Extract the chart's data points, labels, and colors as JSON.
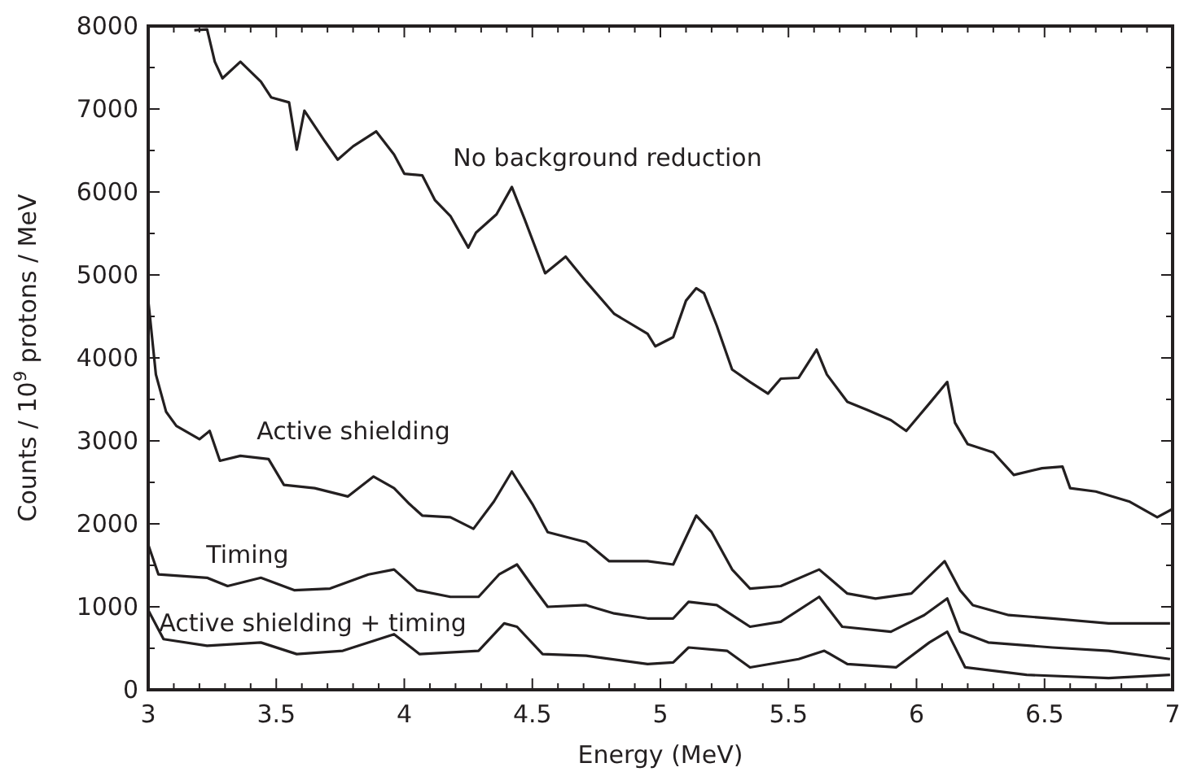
{
  "chart_data": {
    "type": "line",
    "xlabel": "Energy (MeV)",
    "ylabel": "Counts / 10$^{9}$ protons / MeV",
    "xlim": [
      3,
      7
    ],
    "ylim": [
      0,
      8000
    ],
    "xticks": [
      3,
      {
        "value": 3.1,
        "label": null
      },
      {
        "value": 3.2,
        "label": null
      },
      {
        "value": 3.3,
        "label": null
      },
      {
        "value": 3.4,
        "label": null
      },
      3.5,
      {
        "value": 3.6,
        "label": null
      },
      {
        "value": 3.7,
        "label": null
      },
      {
        "value": 3.8,
        "label": null
      },
      {
        "value": 3.9,
        "label": null
      },
      4,
      {
        "value": 4.1,
        "label": null
      },
      {
        "value": 4.2,
        "label": null
      },
      {
        "value": 4.3,
        "label": null
      },
      {
        "value": 4.4,
        "label": null
      },
      4.5,
      {
        "value": 4.6,
        "label": null
      },
      {
        "value": 4.7,
        "label": null
      },
      {
        "value": 4.8,
        "label": null
      },
      {
        "value": 4.9,
        "label": null
      },
      5,
      {
        "value": 5.1,
        "label": null
      },
      {
        "value": 5.2,
        "label": null
      },
      {
        "value": 5.3,
        "label": null
      },
      {
        "value": 5.4,
        "label": null
      },
      5.5,
      {
        "value": 5.6,
        "label": null
      },
      {
        "value": 5.7,
        "label": null
      },
      {
        "value": 5.8,
        "label": null
      },
      {
        "value": 5.9,
        "label": null
      },
      6,
      {
        "value": 6.1,
        "label": null
      },
      {
        "value": 6.2,
        "label": null
      },
      {
        "value": 6.3,
        "label": null
      },
      {
        "value": 6.4,
        "label": null
      },
      6.5,
      {
        "value": 6.6,
        "label": null
      },
      {
        "value": 6.7,
        "label": null
      },
      {
        "value": 6.8,
        "label": null
      },
      {
        "value": 6.9,
        "label": null
      },
      7
    ],
    "yticks": [
      0,
      {
        "value": 500,
        "label": null
      },
      1000,
      {
        "value": 1500,
        "label": null
      },
      2000,
      {
        "value": 2500,
        "label": null
      },
      3000,
      {
        "value": 3500,
        "label": null
      },
      4000,
      {
        "value": 4500,
        "label": null
      },
      5000,
      {
        "value": 5500,
        "label": null
      },
      6000,
      {
        "value": 6500,
        "label": null
      },
      7000,
      {
        "value": 7500,
        "label": null
      },
      8000
    ],
    "grid": false,
    "marker": "none",
    "line_style": "solid",
    "series": [
      {
        "name": "No background reduction",
        "color": "#231f20",
        "x": [
          3.18,
          3.23,
          3.26,
          3.29,
          3.36,
          3.44,
          3.48,
          3.55,
          3.58,
          3.61,
          3.69,
          3.74,
          3.8,
          3.89,
          3.96,
          4.0,
          4.07,
          4.12,
          4.18,
          4.25,
          4.28,
          4.36,
          4.42,
          4.47,
          4.55,
          4.63,
          4.71,
          4.82,
          4.95,
          4.98,
          5.05,
          5.1,
          5.14,
          5.17,
          5.22,
          5.28,
          5.35,
          5.42,
          5.47,
          5.54,
          5.61,
          5.65,
          5.73,
          5.81,
          5.9,
          5.96,
          6.05,
          6.12,
          6.15,
          6.2,
          6.3,
          6.38,
          6.49,
          6.57,
          6.6,
          6.7,
          6.83,
          6.94,
          7.0
        ],
        "values": [
          7950,
          7960,
          7570,
          7370,
          7570,
          7330,
          7140,
          7080,
          6510,
          6980,
          6610,
          6390,
          6550,
          6730,
          6450,
          6220,
          6200,
          5900,
          5710,
          5330,
          5510,
          5730,
          6060,
          5670,
          5020,
          5220,
          4920,
          4530,
          4290,
          4140,
          4250,
          4690,
          4840,
          4780,
          4390,
          3860,
          3710,
          3570,
          3750,
          3760,
          4100,
          3800,
          3470,
          3370,
          3250,
          3120,
          3450,
          3710,
          3220,
          2960,
          2860,
          2590,
          2670,
          2690,
          2430,
          2390,
          2270,
          2080,
          2180
        ]
      },
      {
        "name": "Active shielding",
        "color": "#231f20",
        "x": [
          3.0,
          3.03,
          3.07,
          3.11,
          3.2,
          3.24,
          3.28,
          3.36,
          3.47,
          3.53,
          3.65,
          3.78,
          3.88,
          3.96,
          4.02,
          4.07,
          4.18,
          4.27,
          4.35,
          4.42,
          4.5,
          4.56,
          4.71,
          4.8,
          4.95,
          5.05,
          5.14,
          5.2,
          5.28,
          5.35,
          5.47,
          5.62,
          5.73,
          5.84,
          5.98,
          6.11,
          6.17,
          6.22,
          6.36,
          6.53,
          6.75,
          6.99
        ],
        "values": [
          4700,
          3800,
          3350,
          3180,
          3020,
          3120,
          2760,
          2820,
          2780,
          2470,
          2430,
          2330,
          2570,
          2430,
          2240,
          2100,
          2080,
          1940,
          2270,
          2630,
          2240,
          1900,
          1780,
          1550,
          1550,
          1510,
          2100,
          1900,
          1450,
          1220,
          1250,
          1450,
          1160,
          1100,
          1160,
          1550,
          1200,
          1020,
          900,
          860,
          800,
          800
        ]
      },
      {
        "name": "Timing",
        "color": "#231f20",
        "x": [
          3.0,
          3.04,
          3.23,
          3.31,
          3.44,
          3.57,
          3.71,
          3.86,
          3.96,
          4.05,
          4.18,
          4.29,
          4.37,
          4.44,
          4.5,
          4.56,
          4.71,
          4.82,
          4.95,
          5.05,
          5.11,
          5.22,
          5.35,
          5.47,
          5.62,
          5.71,
          5.9,
          6.03,
          6.12,
          6.17,
          6.28,
          6.53,
          6.75,
          6.99
        ],
        "values": [
          1750,
          1390,
          1350,
          1250,
          1350,
          1200,
          1220,
          1390,
          1450,
          1200,
          1120,
          1120,
          1390,
          1510,
          1250,
          1000,
          1020,
          920,
          860,
          860,
          1060,
          1020,
          760,
          820,
          1120,
          760,
          700,
          900,
          1100,
          700,
          570,
          510,
          470,
          370
        ]
      },
      {
        "name": "Active shielding + timing",
        "color": "#231f20",
        "x": [
          3.0,
          3.06,
          3.23,
          3.44,
          3.58,
          3.76,
          3.96,
          4.06,
          4.29,
          4.39,
          4.44,
          4.54,
          4.71,
          4.95,
          5.05,
          5.11,
          5.26,
          5.35,
          5.54,
          5.64,
          5.73,
          5.92,
          6.05,
          6.12,
          6.19,
          6.43,
          6.75,
          6.99
        ],
        "values": [
          960,
          610,
          530,
          570,
          430,
          470,
          670,
          430,
          470,
          800,
          760,
          430,
          410,
          310,
          330,
          510,
          470,
          270,
          370,
          470,
          310,
          270,
          570,
          700,
          270,
          180,
          140,
          180
        ]
      }
    ]
  }
}
